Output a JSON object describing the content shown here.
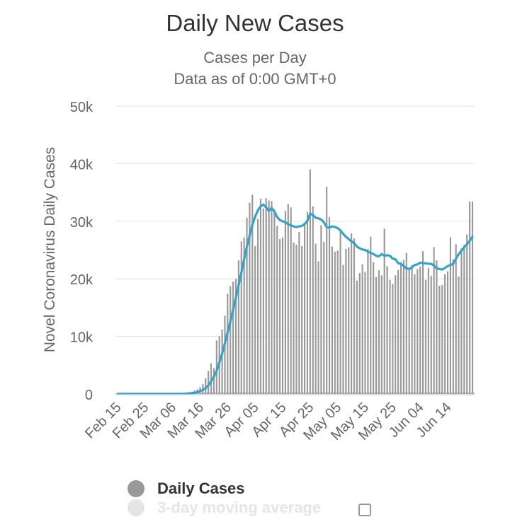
{
  "chart_data": {
    "type": "bar",
    "title": "Daily New Cases",
    "subtitle": [
      "Cases per Day",
      "Data as of 0:00 GMT+0"
    ],
    "ylabel": "Novel Coronavirus Daily Cases",
    "xlabel": "",
    "ylim": [
      0,
      50000
    ],
    "yticks": [
      0,
      10000,
      20000,
      30000,
      40000,
      50000
    ],
    "ytick_labels": [
      "0",
      "10k",
      "20k",
      "30k",
      "40k",
      "50k"
    ],
    "start_date": "Feb 15",
    "xtick_labels": [
      "Feb 15",
      "Feb 25",
      "Mar 06",
      "Mar 16",
      "Mar 26",
      "Apr 05",
      "Apr 15",
      "Apr 25",
      "May 05",
      "May 15",
      "May 25",
      "Jun 04",
      "Jun 14"
    ],
    "xtick_day_index": [
      0,
      10,
      20,
      30,
      40,
      50,
      60,
      70,
      80,
      90,
      100,
      110,
      120
    ],
    "grid": true,
    "colors": {
      "bars": "#999999",
      "line": "#33a3c9",
      "grid": "#e6e6e6",
      "axis": "#ccd6eb"
    },
    "series": [
      {
        "name": "Daily Cases",
        "type": "bar",
        "values": [
          0,
          0,
          0,
          0,
          0,
          0,
          0,
          0,
          0,
          0,
          0,
          0,
          0,
          0,
          0,
          0,
          0,
          0,
          0,
          0,
          30,
          50,
          80,
          100,
          100,
          200,
          300,
          400,
          600,
          800,
          1200,
          1700,
          2700,
          4000,
          5300,
          4500,
          9300,
          10000,
          11200,
          13600,
          17400,
          18700,
          19500,
          20000,
          23200,
          26500,
          27200,
          30600,
          33200,
          34600,
          25700,
          30400,
          33900,
          32200,
          34000,
          33600,
          33500,
          32100,
          29200,
          26900,
          27200,
          31800,
          33000,
          32400,
          26300,
          25900,
          28100,
          25700,
          29700,
          31600,
          39000,
          32600,
          26100,
          23000,
          29300,
          26400,
          36000,
          30700,
          25600,
          24700,
          24900,
          28500,
          22400,
          25200,
          25500,
          27900,
          27000,
          19700,
          21000,
          22500,
          21200,
          25200,
          27300,
          22900,
          20300,
          21500,
          20600,
          28700,
          22200,
          19800,
          19100,
          20600,
          21500,
          22900,
          23300,
          24500,
          21700,
          22400,
          20800,
          21700,
          22100,
          24800,
          19800,
          21900,
          20500,
          25500,
          23200,
          18800,
          18900,
          20800,
          21300,
          27200,
          23400,
          26000,
          20400,
          25300,
          25900,
          27700,
          33400,
          33400
        ]
      },
      {
        "name": "3-day moving average",
        "type": "line",
        "values": [
          0,
          0,
          0,
          0,
          0,
          0,
          0,
          0,
          0,
          0,
          0,
          0,
          0,
          0,
          0,
          0,
          0,
          0,
          0,
          0,
          0,
          0,
          0,
          0,
          0,
          50,
          100,
          150,
          200,
          300,
          500,
          700,
          1000,
          1500,
          2200,
          3000,
          4000,
          5500,
          7000,
          8800,
          10700,
          12600,
          14600,
          16700,
          18900,
          21100,
          23400,
          25600,
          27500,
          29400,
          30800,
          31900,
          32600,
          32900,
          32400,
          31800,
          32300,
          31700,
          30700,
          30200,
          30000,
          29800,
          29500,
          29300,
          29100,
          29000,
          29100,
          29200,
          29500,
          30100,
          31300,
          31100,
          30600,
          30500,
          30300,
          29800,
          29000,
          28900,
          29100,
          29000,
          28800,
          28400,
          27800,
          27300,
          26900,
          26500,
          26200,
          25600,
          25300,
          25100,
          25000,
          24700,
          24500,
          24300,
          24000,
          23900,
          24300,
          24000,
          24100,
          24000,
          23500,
          23400,
          22700,
          22600,
          22200,
          21800,
          21700,
          22000,
          22400,
          22500,
          22800,
          22700,
          22700,
          22600,
          22600,
          22300,
          21800,
          21700,
          21600,
          21900,
          22200,
          22400,
          22600,
          23500,
          24300,
          24900,
          25500,
          26000,
          26600,
          27300
        ]
      }
    ],
    "legend": [
      "Daily Cases",
      "3-day moving average"
    ],
    "legend_position": "bottom"
  }
}
